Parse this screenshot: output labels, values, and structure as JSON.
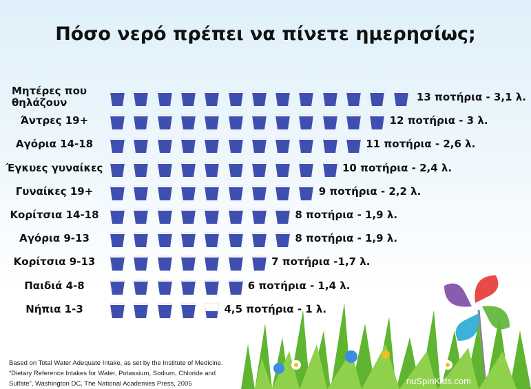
{
  "chart_data": {
    "type": "pictogram-bar",
    "title": "Πόσο νερό πρέπει να πίνετε ημερησίως;",
    "unit": "glasses",
    "categories": [
      "Μητέρες που θηλάζουν",
      "Άντρες 19+",
      "Αγόρια 14-18",
      "Έγκυες γυναίκες",
      "Γυναίκες 19+",
      "Κορίτσια 14-18",
      "Αγόρια 9-13",
      "Κορίτσια 9-13",
      "Παιδιά 4-8",
      "Νήπια 1-3"
    ],
    "values": [
      13,
      12,
      11,
      10,
      9,
      8,
      8,
      7,
      6,
      4.5
    ],
    "liters": [
      3.1,
      3,
      2.6,
      2.4,
      2.2,
      1.9,
      1.9,
      1.7,
      1.4,
      1
    ],
    "data_labels": [
      "13 ποτήρια - 3,1 λ.",
      "12 ποτήρια - 3 λ.",
      "11 ποτήρια - 2,6 λ.",
      "10 ποτήρια - 2,4 λ.",
      "9 ποτήρια - 2,2 λ.",
      "8 ποτήρια - 1,9 λ.",
      "8 ποτήρια - 1,9 λ.",
      "7 ποτήρια -1,7 λ.",
      "6 ποτήρια - 1,4 λ.",
      "4,5 ποτήρια - 1 λ."
    ],
    "colors": {
      "water": "#3f4fb0",
      "glass": "#ffffff"
    }
  },
  "footer": {
    "source_lines": [
      "Based on Total Water Adequate Intake, as set by the Institute of Medicine.",
      "“Dietary Reference Intakes for Water, Potassium, Sodium, Chloride and",
      "Sulfate”, Washington DC, The National Academies Press, 2005"
    ],
    "brand": "nuSpinKids.com"
  }
}
